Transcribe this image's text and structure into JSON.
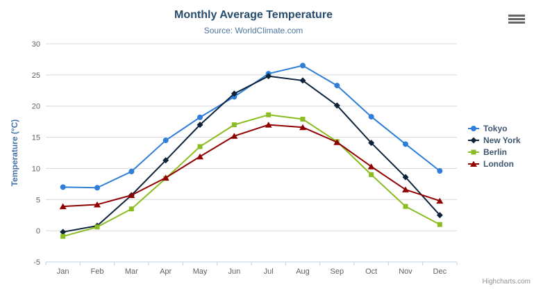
{
  "chart": {
    "title": "Monthly Average Temperature",
    "subtitle": "Source: WorldClimate.com",
    "credit_label": "Highcharts.com"
  },
  "colors": {
    "background": "#ffffff",
    "title": "#274b6d",
    "subtitle": "#4d759e",
    "axis_title": "#4572a7",
    "tick_label": "#606060",
    "gridline": "#d8d8d8",
    "axis_line": "#c0d0e0",
    "legend_text": "#3e576f",
    "credit": "#909090",
    "menu_icon": "#666666"
  },
  "chart_data": {
    "type": "line",
    "title": "Monthly Average Temperature",
    "subtitle": "Source: WorldClimate.com",
    "xlabel": "",
    "ylabel": "Temperature (°C)",
    "ylim": [
      -5,
      30
    ],
    "ytick_step": 5,
    "grid": true,
    "legend_position": "right",
    "categories": [
      "Jan",
      "Feb",
      "Mar",
      "Apr",
      "May",
      "Jun",
      "Jul",
      "Aug",
      "Sep",
      "Oct",
      "Nov",
      "Dec"
    ],
    "series": [
      {
        "name": "Tokyo",
        "color": "#2f7ed8",
        "marker": "circle",
        "values": [
          7.0,
          6.9,
          9.5,
          14.5,
          18.2,
          21.5,
          25.2,
          26.5,
          23.3,
          18.3,
          13.9,
          9.6
        ]
      },
      {
        "name": "New York",
        "color": "#0d233a",
        "marker": "diamond",
        "values": [
          -0.2,
          0.8,
          5.7,
          11.3,
          17.0,
          22.0,
          24.8,
          24.1,
          20.1,
          14.1,
          8.6,
          2.5
        ]
      },
      {
        "name": "Berlin",
        "color": "#8bbc21",
        "marker": "square",
        "values": [
          -0.9,
          0.6,
          3.5,
          8.4,
          13.5,
          17.0,
          18.6,
          17.9,
          14.3,
          9.0,
          3.9,
          1.0
        ]
      },
      {
        "name": "London",
        "color": "#910000",
        "marker": "triangle",
        "values": [
          3.9,
          4.2,
          5.7,
          8.5,
          11.9,
          15.2,
          17.0,
          16.6,
          14.2,
          10.3,
          6.6,
          4.8
        ]
      }
    ]
  }
}
